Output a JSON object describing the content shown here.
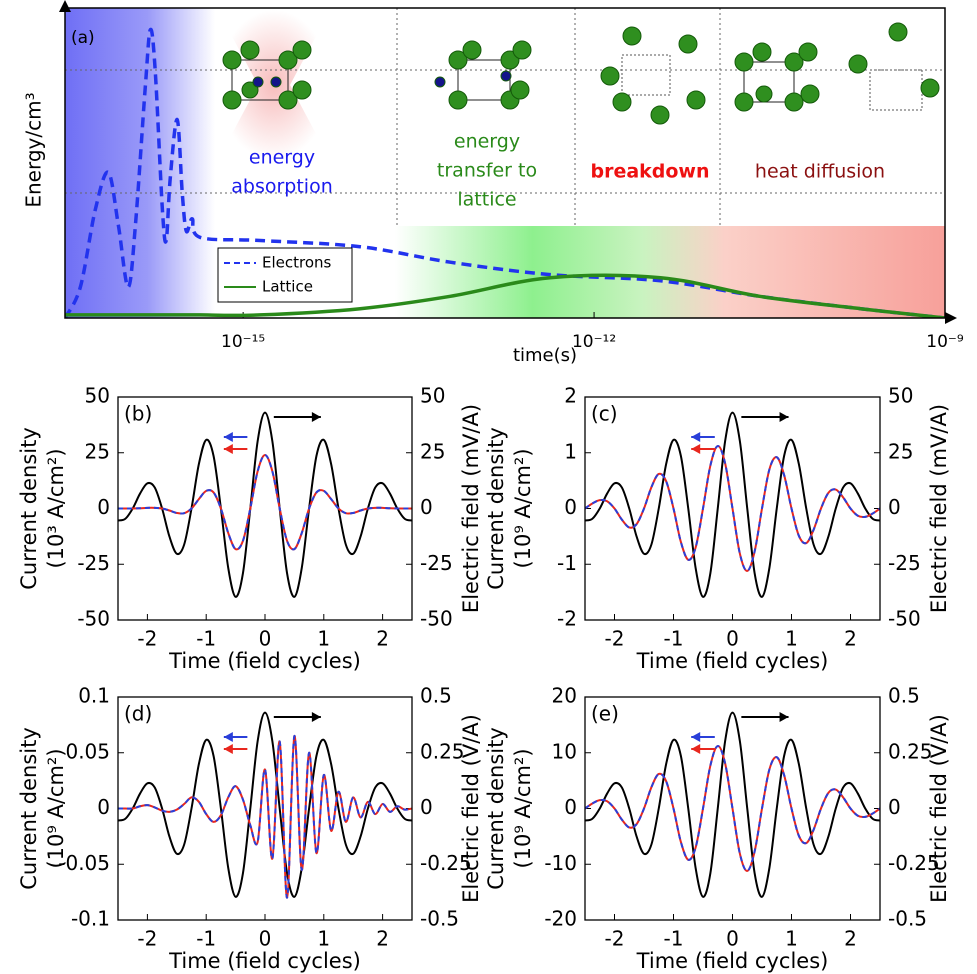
{
  "chart_data": [
    {
      "type": "line",
      "panel_label": "(a)",
      "xlabel": "time(s)",
      "ylabel": "Energy/cm³",
      "xscale": "log",
      "xlim": [
        3e-17,
        1e-09
      ],
      "xticks": [
        {
          "value": 1e-15,
          "label": "10⁻¹⁵"
        },
        {
          "value": 1e-12,
          "label": "10⁻¹²"
        },
        {
          "value": 1e-09,
          "label": "10⁻⁹"
        }
      ],
      "ylim": [
        0,
        1
      ],
      "legend": "lower left",
      "x": [
        3e-17,
        4.06e-17,
        5.45e-17,
        7.03e-17,
        8.57e-17,
        1.04e-16,
        1.2e-16,
        1.46e-16,
        1.61e-16,
        1.77e-16,
        2.04e-16,
        2.2e-16,
        2.38e-16,
        2.73e-16,
        3.02e-16,
        3.27e-16,
        3.67e-16,
        4.3e-16,
        1.4e-15,
        1e-14,
        5.9e-14,
        4.2e-13,
        3.7e-12,
        2.6e-11,
        1.9e-10,
        1e-09
      ],
      "series": [
        {
          "name": "Electrons",
          "color": "#2233ee",
          "style": "dashed",
          "values": [
            0.0,
            0.1,
            0.35,
            0.47,
            0.3,
            0.1,
            0.3,
            0.75,
            0.93,
            0.8,
            0.35,
            0.25,
            0.45,
            0.64,
            0.4,
            0.28,
            0.32,
            0.26,
            0.25,
            0.23,
            0.18,
            0.14,
            0.12,
            0.07,
            0.03,
            0.0
          ]
        },
        {
          "name": "Lattice",
          "color": "#2a8a1a",
          "style": "solid",
          "values": [
            0.01,
            0.01,
            0.01,
            0.01,
            0.01,
            0.01,
            0.01,
            0.01,
            0.01,
            0.01,
            0.01,
            0.01,
            0.01,
            0.01,
            0.01,
            0.01,
            0.01,
            0.01,
            0.01,
            0.03,
            0.07,
            0.13,
            0.13,
            0.07,
            0.03,
            0.0
          ]
        }
      ],
      "annotations": [
        {
          "text": [
            "energy",
            "absorption"
          ],
          "color": "#1a1aee"
        },
        {
          "text": [
            "energy",
            "transfer to",
            "lattice"
          ],
          "color": "#2a8a1a"
        },
        {
          "text": [
            "breakdown"
          ],
          "color": "#ee1111",
          "bold": true
        },
        {
          "text": [
            "heat diffusion"
          ],
          "color": "#8b1010"
        }
      ]
    },
    {
      "type": "line",
      "panel_label": "(b)",
      "xlabel": "Time (field cycles)",
      "ylabel": [
        "Current density",
        "(10³ A/cm²)"
      ],
      "y2label": "Electric field (mV/A)",
      "xlim": [
        -2.5,
        2.5
      ],
      "xticks": [
        -2,
        -1,
        0,
        1,
        2
      ],
      "ylim": [
        -50,
        50
      ],
      "yticks": [
        -50,
        -25,
        0,
        25,
        50
      ],
      "y2lim": [
        -50,
        50
      ],
      "y2ticks": [
        -50,
        -25,
        0,
        25,
        50
      ],
      "x": [
        -2.5,
        -2.375,
        -2.25,
        -2.125,
        -2,
        -1.875,
        -1.75,
        -1.625,
        -1.5,
        -1.375,
        -1.25,
        -1.125,
        -1,
        -0.875,
        -0.75,
        -0.625,
        -0.5,
        -0.375,
        -0.25,
        -0.125,
        0,
        0.125,
        0.25,
        0.375,
        0.5,
        0.625,
        0.75,
        0.875,
        1,
        1.125,
        1.25,
        1.375,
        1.5,
        1.625,
        1.75,
        1.875,
        2,
        2.125,
        2.25,
        2.375,
        2.5
      ],
      "series": [
        {
          "color": "#000000",
          "style": "solid",
          "axis": "y2",
          "values": [
            -5.4,
            -4.6,
            0,
            6.7,
            11.3,
            9.4,
            0,
            -12.6,
            -20.3,
            -16.2,
            0,
            19.9,
            30.8,
            23.6,
            0,
            -26.7,
            -39.6,
            -29.0,
            0,
            30.2,
            43,
            30.2,
            0,
            -29.0,
            -39.6,
            -26.7,
            0,
            23.6,
            30.8,
            19.9,
            0,
            -16.2,
            -20.3,
            -12.6,
            0,
            9.4,
            11.3,
            6.7,
            0,
            -4.6,
            -5.4
          ]
        },
        {
          "color": "#e8271e",
          "style": "solid",
          "values": [
            0,
            0,
            0,
            0.1,
            0.3,
            0.3,
            0,
            -0.9,
            -2.0,
            -2.1,
            0,
            4.2,
            7.9,
            7.2,
            0,
            -11.0,
            -18.2,
            -14.5,
            0,
            16.7,
            24,
            16.7,
            0,
            -14.5,
            -18.2,
            -11.0,
            0,
            7.2,
            7.9,
            4.2,
            0,
            -2.1,
            -2.0,
            -0.9,
            0,
            0.3,
            0.3,
            0.1,
            0,
            0,
            0
          ]
        },
        {
          "color": "#2a3fd9",
          "style": "dashed",
          "values": [
            0,
            0,
            0,
            0.1,
            0.3,
            0.3,
            0,
            -0.9,
            -2.0,
            -2.1,
            0,
            4.2,
            7.9,
            7.2,
            0,
            -11.0,
            -18.2,
            -14.5,
            0,
            16.7,
            24,
            16.7,
            0,
            -14.5,
            -18.2,
            -11.0,
            0,
            7.2,
            7.9,
            4.2,
            0,
            -2.1,
            -2.0,
            -0.9,
            0,
            0.3,
            0.3,
            0.1,
            0,
            0,
            0
          ]
        }
      ]
    },
    {
      "type": "line",
      "panel_label": "(c)",
      "xlabel": "Time (field cycles)",
      "ylabel": [
        "Current density",
        "(10⁹ A/cm²)"
      ],
      "y2label": "Electric field (mV/A)",
      "xlim": [
        -2.5,
        2.5
      ],
      "xticks": [
        -2,
        -1,
        0,
        1,
        2
      ],
      "ylim": [
        -2,
        2
      ],
      "yticks": [
        -2,
        -1,
        0,
        1,
        2
      ],
      "y2lim": [
        -50,
        50
      ],
      "y2ticks": [
        -50,
        -25,
        0,
        25,
        50
      ],
      "x": [
        -2.5,
        -2.375,
        -2.25,
        -2.125,
        -2,
        -1.875,
        -1.75,
        -1.625,
        -1.5,
        -1.375,
        -1.25,
        -1.125,
        -1,
        -0.875,
        -0.75,
        -0.625,
        -0.5,
        -0.375,
        -0.25,
        -0.125,
        0,
        0.125,
        0.25,
        0.375,
        0.5,
        0.625,
        0.75,
        0.875,
        1,
        1.125,
        1.25,
        1.375,
        1.5,
        1.625,
        1.75,
        1.875,
        2,
        2.125,
        2.25,
        2.375,
        2.5
      ],
      "series": [
        {
          "color": "#000000",
          "style": "solid",
          "axis": "y2",
          "values": [
            -5.4,
            -4.6,
            0,
            6.7,
            11.3,
            9.4,
            0,
            -12.6,
            -20.3,
            -16.2,
            0,
            19.9,
            30.8,
            23.6,
            0,
            -26.7,
            -39.6,
            -29.0,
            0,
            30.2,
            43,
            30.2,
            0,
            -29.0,
            -39.6,
            -26.7,
            0,
            23.6,
            30.8,
            19.9,
            0,
            -16.2,
            -20.3,
            -12.6,
            0,
            9.4,
            11.3,
            6.7,
            0,
            -4.6,
            -5.4
          ]
        },
        {
          "color": "#e8271e",
          "style": "solid",
          "values": [
            0,
            0.09,
            0.15,
            0.13,
            0,
            -0.2,
            -0.34,
            -0.28,
            0,
            0.38,
            0.62,
            0.49,
            0,
            -0.6,
            -0.92,
            -0.7,
            0,
            0.77,
            1.12,
            0.81,
            0,
            -0.81,
            -1.12,
            -0.77,
            0,
            0.7,
            0.92,
            0.6,
            0,
            -0.49,
            -0.62,
            -0.38,
            0,
            0.28,
            0.34,
            0.2,
            0,
            -0.13,
            -0.15,
            -0.09,
            0
          ]
        },
        {
          "color": "#2a3fd9",
          "style": "dashed",
          "values": [
            0,
            0.09,
            0.15,
            0.13,
            0,
            -0.2,
            -0.34,
            -0.28,
            0,
            0.38,
            0.62,
            0.49,
            0,
            -0.6,
            -0.92,
            -0.7,
            0,
            0.77,
            1.12,
            0.81,
            0,
            -0.81,
            -1.12,
            -0.77,
            0,
            0.7,
            0.92,
            0.6,
            0,
            -0.49,
            -0.62,
            -0.38,
            0,
            0.28,
            0.34,
            0.2,
            0,
            -0.13,
            -0.15,
            -0.09,
            0
          ]
        }
      ]
    },
    {
      "type": "line",
      "panel_label": "(d)",
      "xlabel": "Time (field cycles)",
      "ylabel": [
        "Current density",
        "(10⁹ A/cm²)"
      ],
      "y2label": "Electric field (V/A)",
      "xlim": [
        -2.5,
        2.5
      ],
      "xticks": [
        -2,
        -1,
        0,
        1,
        2
      ],
      "ylim": [
        -0.1,
        0.1
      ],
      "yticks": [
        -0.1,
        -0.05,
        0,
        0.05,
        0.1
      ],
      "y2lim": [
        -0.5,
        0.5
      ],
      "y2ticks": [
        -0.5,
        -0.25,
        0,
        0.25,
        0.5
      ],
      "x": [
        -2.5,
        -2.375,
        -2.25,
        -2.125,
        -2,
        -1.875,
        -1.75,
        -1.625,
        -1.5,
        -1.375,
        -1.25,
        -1.125,
        -1,
        -0.875,
        -0.75,
        -0.625,
        -0.5,
        -0.375,
        -0.25,
        -0.125,
        0,
        0.125,
        0.25,
        0.375,
        0.5,
        0.625,
        0.75,
        0.875,
        1,
        1.125,
        1.25,
        1.375,
        1.5,
        1.625,
        1.75,
        1.875,
        2,
        2.125,
        2.25,
        2.375,
        2.5
      ],
      "series": [
        {
          "color": "#000000",
          "style": "solid",
          "axis": "y2",
          "values": [
            -0.054,
            -0.046,
            0,
            0.067,
            0.113,
            0.094,
            0,
            -0.126,
            -0.203,
            -0.162,
            0,
            0.199,
            0.308,
            0.236,
            0,
            -0.267,
            -0.396,
            -0.29,
            0,
            0.302,
            0.43,
            0.302,
            0,
            -0.29,
            -0.396,
            -0.267,
            0,
            0.236,
            0.308,
            0.199,
            0,
            -0.162,
            -0.203,
            -0.126,
            0,
            0.094,
            0.113,
            0.067,
            0,
            -0.046,
            -0.054
          ]
        },
        {
          "color": "#e8271e",
          "style": "solid",
          "values": [
            0,
            0,
            0,
            0.002,
            0.003,
            0.001,
            -0.002,
            -0.003,
            -0.001,
            0.004,
            0.01,
            0.006,
            -0.005,
            -0.012,
            -0.006,
            0.01,
            0.02,
            0.008,
            -0.015,
            -0.03,
            0.035,
            -0.045,
            0.06,
            -0.08,
            0.065,
            -0.055,
            0.05,
            -0.04,
            0.03,
            -0.02,
            0.015,
            -0.012,
            0.01,
            -0.008,
            0.006,
            -0.005,
            0.004,
            -0.003,
            0.002,
            -0.001,
            0
          ]
        },
        {
          "color": "#2a3fd9",
          "style": "dashed",
          "values": [
            0,
            0,
            0,
            0.002,
            0.003,
            0.001,
            -0.002,
            -0.003,
            -0.001,
            0.004,
            0.01,
            0.006,
            -0.005,
            -0.012,
            -0.006,
            0.01,
            0.02,
            0.008,
            -0.015,
            -0.03,
            0.035,
            -0.045,
            0.06,
            -0.08,
            0.065,
            -0.055,
            0.05,
            -0.04,
            0.03,
            -0.02,
            0.015,
            -0.012,
            0.01,
            -0.008,
            0.006,
            -0.005,
            0.004,
            -0.003,
            0.002,
            -0.001,
            0
          ]
        }
      ]
    },
    {
      "type": "line",
      "panel_label": "(e)",
      "xlabel": "Time (field cycles)",
      "ylabel": [
        "Current density",
        "(10⁹ A/cm²)"
      ],
      "y2label": "Electric field (V/A)",
      "xlim": [
        -2.5,
        2.5
      ],
      "xticks": [
        -2,
        -1,
        0,
        1,
        2
      ],
      "ylim": [
        -20,
        20
      ],
      "yticks": [
        -20,
        -10,
        0,
        10,
        20
      ],
      "y2lim": [
        -0.5,
        0.5
      ],
      "y2ticks": [
        -0.5,
        -0.25,
        0,
        0.25,
        0.5
      ],
      "x": [
        -2.5,
        -2.375,
        -2.25,
        -2.125,
        -2,
        -1.875,
        -1.75,
        -1.625,
        -1.5,
        -1.375,
        -1.25,
        -1.125,
        -1,
        -0.875,
        -0.75,
        -0.625,
        -0.5,
        -0.375,
        -0.25,
        -0.125,
        0,
        0.125,
        0.25,
        0.375,
        0.5,
        0.625,
        0.75,
        0.875,
        1,
        1.125,
        1.25,
        1.375,
        1.5,
        1.625,
        1.75,
        1.875,
        2,
        2.125,
        2.25,
        2.375,
        2.5
      ],
      "series": [
        {
          "color": "#000000",
          "style": "solid",
          "axis": "y2",
          "values": [
            -0.054,
            -0.046,
            0,
            0.067,
            0.113,
            0.094,
            0,
            -0.126,
            -0.203,
            -0.162,
            0,
            0.199,
            0.308,
            0.236,
            0,
            -0.267,
            -0.396,
            -0.29,
            0,
            0.302,
            0.43,
            0.302,
            0,
            -0.29,
            -0.396,
            -0.267,
            0,
            0.236,
            0.308,
            0.199,
            0,
            -0.162,
            -0.203,
            -0.126,
            0,
            0.094,
            0.113,
            0.067,
            0,
            -0.046,
            -0.054
          ]
        },
        {
          "color": "#e8271e",
          "style": "solid",
          "values": [
            0,
            0.9,
            1.5,
            1.3,
            0,
            -2,
            -3.4,
            -2.8,
            0,
            3.8,
            6.2,
            4.9,
            0,
            -6,
            -9.2,
            -7,
            0,
            7.7,
            11.2,
            8.1,
            0,
            -8.1,
            -11.2,
            -7.7,
            0,
            7,
            9.2,
            6,
            0,
            -4.9,
            -6.2,
            -3.8,
            0,
            2.8,
            3.4,
            2,
            0,
            -1.3,
            -1.5,
            -0.9,
            0
          ]
        },
        {
          "color": "#2a3fd9",
          "style": "dashed",
          "values": [
            0,
            0.9,
            1.5,
            1.3,
            0,
            -2,
            -3.4,
            -2.8,
            0,
            3.8,
            6.2,
            4.9,
            0,
            -6,
            -9.2,
            -7,
            0,
            7.7,
            11.2,
            8.1,
            0,
            -8.1,
            -11.2,
            -7.7,
            0,
            7,
            9.2,
            6,
            0,
            -4.9,
            -6.2,
            -3.8,
            0,
            2.8,
            3.4,
            2,
            0,
            -1.3,
            -1.5,
            -0.9,
            0
          ]
        }
      ]
    }
  ]
}
